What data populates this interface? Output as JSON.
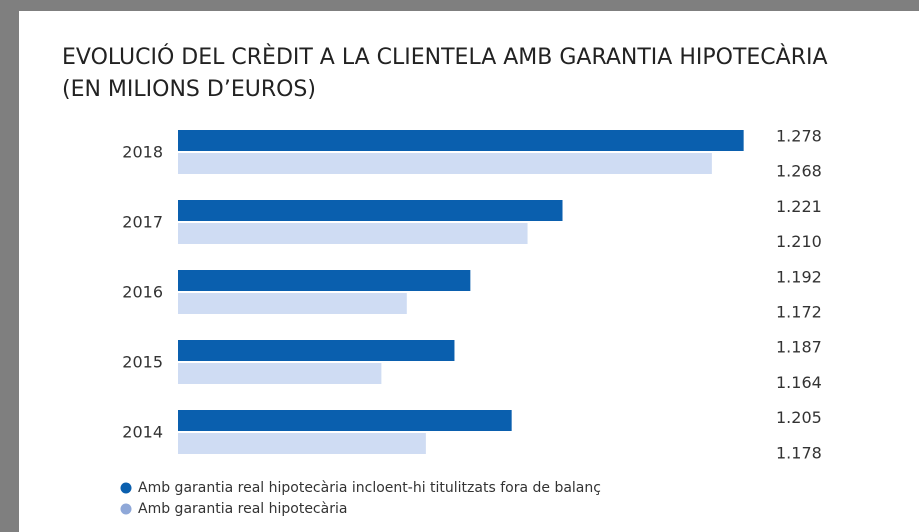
{
  "chart_data": {
    "type": "hbar",
    "title": "EVOLUCIÓ DEL CRÈDIT A LA CLIENTELA AMB GARANTIA HIPOTECÀRIA",
    "subtitle": "(EN MILIONS D’EUROS)",
    "categories": [
      "2018",
      "2017",
      "2016",
      "2015",
      "2014"
    ],
    "series": [
      {
        "name": "Amb garantia real hipotecària incloent-hi titulitzats fora de balanç",
        "color": "#0a5fae",
        "values": [
          1278,
          1221,
          1192,
          1187,
          1205
        ],
        "value_labels": [
          "1.278",
          "1.221",
          "1.192",
          "1.187",
          "1.205"
        ]
      },
      {
        "name": "Amb garantia real hipotecària",
        "color": "#cfdcf3",
        "values": [
          1268,
          1210,
          1172,
          1164,
          1178
        ],
        "value_labels": [
          "1.268",
          "1.210",
          "1.172",
          "1.164",
          "1.178"
        ]
      }
    ],
    "xlim": [
      1100,
      1280
    ]
  }
}
